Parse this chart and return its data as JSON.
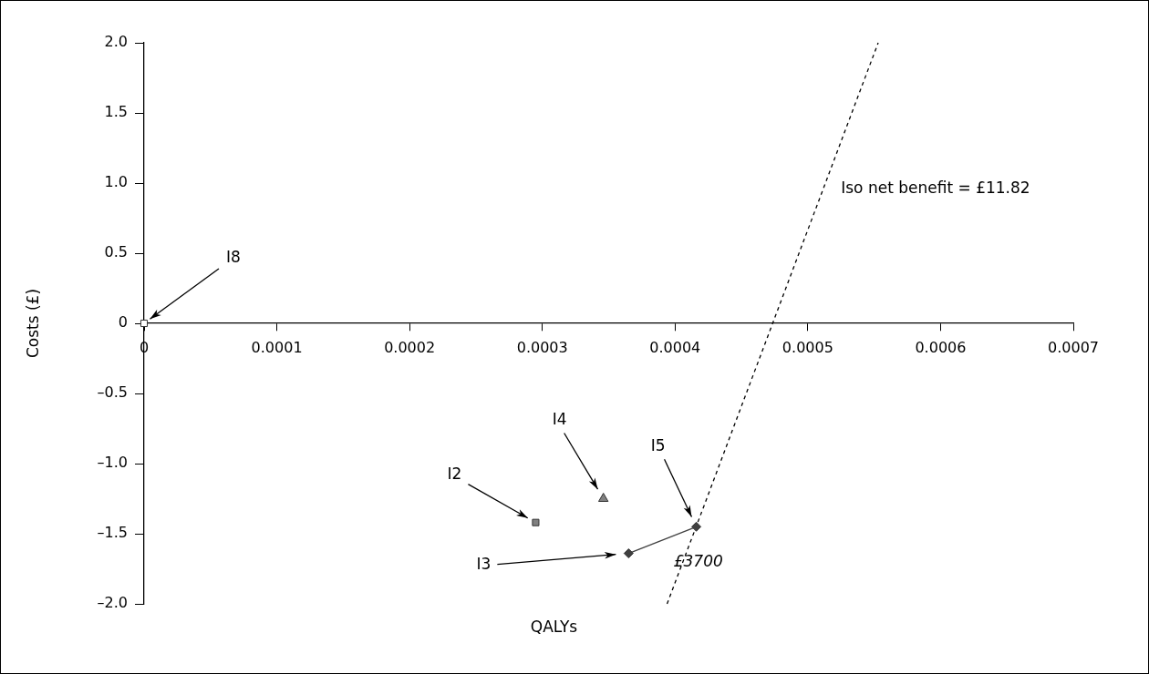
{
  "chart_data": {
    "type": "scatter",
    "xlabel": "QALYs",
    "ylabel": "Costs (£)",
    "xlim": [
      0,
      0.0007
    ],
    "ylim": [
      -2,
      2
    ],
    "xticks": [
      0,
      0.0001,
      0.0002,
      0.0003,
      0.0004,
      0.0005,
      0.0006,
      0.0007
    ],
    "yticks": [
      {
        "value": -2,
        "label": "–2.0"
      },
      {
        "value": -1.5,
        "label": "–1.5"
      },
      {
        "value": -1,
        "label": "–1.0"
      },
      {
        "value": -0.5,
        "label": "–0.5"
      },
      0,
      {
        "value": 0.5,
        "label": "0.5"
      },
      {
        "value": 1,
        "label": "1.0"
      },
      {
        "value": 1.5,
        "label": "1.5"
      },
      {
        "value": 2,
        "label": "2.0"
      }
    ],
    "grid": false,
    "legend": false,
    "series": [
      {
        "name": "I8",
        "type": "scatter",
        "marker": "square",
        "color": "#ffffff",
        "x": [
          0
        ],
        "values": [
          0
        ]
      },
      {
        "name": "I2",
        "type": "scatter",
        "marker": "square",
        "color": "#808080",
        "x": [
          0.000295
        ],
        "values": [
          -1.42
        ]
      },
      {
        "name": "I4",
        "type": "scatter",
        "marker": "triangle",
        "color": "#808080",
        "x": [
          0.000346
        ],
        "values": [
          -1.25
        ]
      },
      {
        "name": "I5",
        "type": "scatter",
        "marker": "diamond",
        "color": "#404040",
        "x": [
          0.000416
        ],
        "values": [
          -1.45
        ]
      },
      {
        "name": "I3",
        "type": "scatter",
        "marker": "diamond",
        "color": "#404040",
        "x": [
          0.000365
        ],
        "values": [
          -1.64
        ]
      },
      {
        "type": "line",
        "marker": "none",
        "line_style": "solid",
        "color": "#404040",
        "x": [
          0.000365,
          0.000416
        ],
        "values": [
          -1.64,
          -1.45
        ]
      },
      {
        "type": "line",
        "marker": "none",
        "line_style": "dashed",
        "color": "#000000",
        "x": [
          0.000394,
          0.000553
        ],
        "values": [
          -2,
          2
        ]
      }
    ],
    "annotations": [
      {
        "text": "£3700",
        "x": 0.00039,
        "y": -1.55
      },
      "Iso net benefit = £11.82"
    ]
  }
}
